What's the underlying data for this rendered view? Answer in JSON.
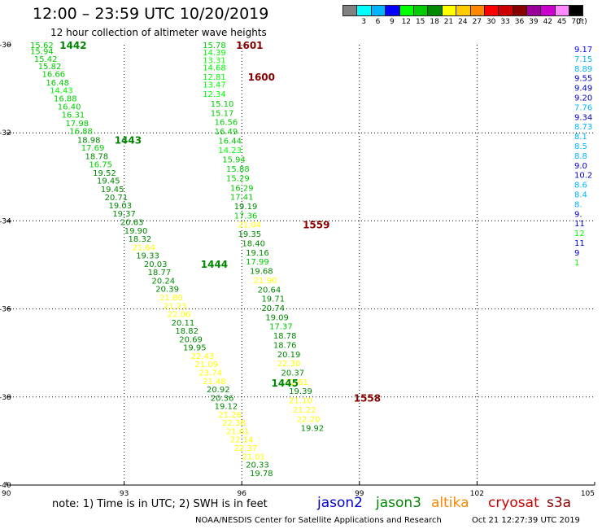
{
  "title": "12:00 – 23:59 UTC 10/20/2019",
  "subtitle": "12 hour collection of altimeter wave heights",
  "note": "note: 1) Time is in UTC; 2) SWH is in feet",
  "credit": "NOAA/NESDIS Center for Satellite Applications and Research",
  "timestamp": "Oct 21 12:27:39 UTC 2019",
  "legend": {
    "unit": "(ft)",
    "items": [
      {
        "label": "",
        "color": "#808080"
      },
      {
        "label": "3",
        "color": "#00ffff"
      },
      {
        "label": "6",
        "color": "#00b4ff"
      },
      {
        "label": "9",
        "color": "#0000ff"
      },
      {
        "label": "12",
        "color": "#00ff00"
      },
      {
        "label": "15",
        "color": "#00cc00"
      },
      {
        "label": "18",
        "color": "#008800"
      },
      {
        "label": "21",
        "color": "#ffff00"
      },
      {
        "label": "24",
        "color": "#ffcc00"
      },
      {
        "label": "27",
        "color": "#ff8800"
      },
      {
        "label": "30",
        "color": "#ff0000"
      },
      {
        "label": "33",
        "color": "#cc0000"
      },
      {
        "label": "36",
        "color": "#880000"
      },
      {
        "label": "39",
        "color": "#990099"
      },
      {
        "label": "42",
        "color": "#cc00cc"
      },
      {
        "label": "45",
        "color": "#ff88ff"
      },
      {
        "label": "70",
        "color": "#000000"
      }
    ]
  },
  "satellites": [
    {
      "name": "jason2",
      "color": "#0000cc"
    },
    {
      "name": "jason3",
      "color": "#008800"
    },
    {
      "name": "altika",
      "color": "#ff8800"
    },
    {
      "name": "cryosat",
      "color": "#cc0000"
    },
    {
      "name": "s3a",
      "color": "#880000"
    }
  ],
  "chart_data": {
    "type": "scatter",
    "xlabel": "",
    "ylabel": "",
    "xlim": [
      90,
      105
    ],
    "ylim": [
      -40,
      -30
    ],
    "x_ticks": [
      "90",
      "93",
      "96",
      "99",
      "102",
      "105"
    ],
    "x_tick_values": [
      90,
      93,
      96,
      99,
      102,
      105
    ],
    "y_ticks": [
      "-30",
      "-32",
      "-34",
      "-36",
      "-38",
      "-40"
    ],
    "y_tick_values": [
      -30,
      -32,
      -34,
      -36,
      -38,
      -40
    ],
    "grid": true,
    "series": [
      {
        "points": [
          [
            90.9,
            -30.0,
            "15.62",
            "#00cc00"
          ],
          [
            90.9,
            -30.14,
            "15.94",
            "#00cc00"
          ],
          [
            91.0,
            -30.31,
            "15.42",
            "#00cc00"
          ],
          [
            91.1,
            -30.48,
            "15.82",
            "#00cc00"
          ],
          [
            91.2,
            -30.66,
            "16.66",
            "#00cc00"
          ],
          [
            91.3,
            -30.85,
            "16.48",
            "#00cc00"
          ],
          [
            91.4,
            -31.03,
            "14.43",
            "#00ff00"
          ],
          [
            91.5,
            -31.21,
            "16.88",
            "#00cc00"
          ],
          [
            91.6,
            -31.4,
            "16.40",
            "#00cc00"
          ],
          [
            91.7,
            -31.58,
            "16.31",
            "#00cc00"
          ],
          [
            91.8,
            -31.77,
            "17.98",
            "#00cc00"
          ],
          [
            91.9,
            -31.95,
            "16.88",
            "#00cc00"
          ],
          [
            92.1,
            -32.15,
            "18.98",
            "#008800"
          ],
          [
            92.2,
            -32.33,
            "17.69",
            "#00cc00"
          ],
          [
            92.3,
            -32.52,
            "18.78",
            "#008800"
          ],
          [
            92.4,
            -32.71,
            "16.75",
            "#00cc00"
          ],
          [
            92.5,
            -32.9,
            "19.52",
            "#008800"
          ],
          [
            92.6,
            -33.08,
            "19.45",
            "#008800"
          ],
          [
            92.7,
            -33.27,
            "19.45",
            "#008800"
          ],
          [
            92.8,
            -33.46,
            "20.71",
            "#008800"
          ],
          [
            92.9,
            -33.64,
            "19.03",
            "#008800"
          ],
          [
            93.0,
            -33.83,
            "19.37",
            "#008800"
          ],
          [
            93.2,
            -34.02,
            "20.63",
            "#008800"
          ],
          [
            93.3,
            -34.21,
            "19.90",
            "#008800"
          ],
          [
            93.4,
            -34.4,
            "18.32",
            "#008800"
          ],
          [
            93.5,
            -34.59,
            "21.64",
            "#ffff00"
          ],
          [
            93.6,
            -34.78,
            "19.33",
            "#008800"
          ],
          [
            93.8,
            -34.97,
            "20.03",
            "#008800"
          ],
          [
            93.9,
            -35.16,
            "18.77",
            "#008800"
          ],
          [
            94.0,
            -35.35,
            "20.24",
            "#008800"
          ],
          [
            94.1,
            -35.54,
            "20.39",
            "#008800"
          ],
          [
            94.2,
            -35.73,
            "21.80",
            "#ffff00"
          ],
          [
            94.3,
            -35.92,
            "21.23",
            "#ffff00"
          ],
          [
            94.4,
            -36.11,
            "22.06",
            "#ffff00"
          ],
          [
            94.5,
            -36.3,
            "20.11",
            "#008800"
          ],
          [
            94.6,
            -36.49,
            "18.82",
            "#008800"
          ],
          [
            94.7,
            -36.68,
            "20.69",
            "#008800"
          ],
          [
            94.8,
            -36.87,
            "19.95",
            "#008800"
          ],
          [
            95.0,
            -37.06,
            "22.43",
            "#ffff00"
          ],
          [
            95.1,
            -37.25,
            "21.09",
            "#ffff00"
          ],
          [
            95.2,
            -37.44,
            "23.74",
            "#ffff00"
          ],
          [
            95.3,
            -37.63,
            "21.48",
            "#ffff00"
          ],
          [
            95.4,
            -37.82,
            "20.92",
            "#008800"
          ],
          [
            95.5,
            -38.01,
            "20.36",
            "#008800"
          ],
          [
            95.6,
            -38.2,
            "19.12",
            "#008800"
          ],
          [
            95.7,
            -38.39,
            "21.26",
            "#ffff00"
          ],
          [
            95.8,
            -38.58,
            "22.38",
            "#ffff00"
          ],
          [
            95.9,
            -38.77,
            "21.61",
            "#ffff00"
          ],
          [
            96.0,
            -38.96,
            "22.14",
            "#ffff00"
          ],
          [
            96.1,
            -39.15,
            "22.37",
            "#ffff00"
          ],
          [
            96.3,
            -39.34,
            "21.01",
            "#ffff00"
          ],
          [
            96.4,
            -39.53,
            "20.33",
            "#008800"
          ],
          [
            96.5,
            -39.72,
            "19.78",
            "#008800"
          ]
        ]
      },
      {
        "points": [
          [
            95.3,
            -30.0,
            "15.78",
            "#00cc00"
          ],
          [
            95.3,
            -30.17,
            "14.39",
            "#00ff00"
          ],
          [
            95.3,
            -30.34,
            "13.31",
            "#00ff00"
          ],
          [
            95.3,
            -30.51,
            "14.68",
            "#00ff00"
          ],
          [
            95.3,
            -30.72,
            "12.81",
            "#00ff00"
          ],
          [
            95.3,
            -30.9,
            "13.47",
            "#00ff00"
          ],
          [
            95.3,
            -31.11,
            "12.34",
            "#00ff00"
          ],
          [
            95.5,
            -31.33,
            "15.10",
            "#00cc00"
          ],
          [
            95.5,
            -31.54,
            "15.17",
            "#00cc00"
          ],
          [
            95.6,
            -31.75,
            "16.56",
            "#00cc00"
          ],
          [
            95.6,
            -31.96,
            "16.49",
            "#00cc00"
          ],
          [
            95.7,
            -32.17,
            "16.44",
            "#00cc00"
          ],
          [
            95.7,
            -32.38,
            "14.23",
            "#00ff00"
          ],
          [
            95.8,
            -32.6,
            "15.94",
            "#00cc00"
          ],
          [
            95.9,
            -32.81,
            "15.88",
            "#00cc00"
          ],
          [
            95.9,
            -33.02,
            "15.29",
            "#00cc00"
          ],
          [
            96.0,
            -33.24,
            "16.29",
            "#00cc00"
          ],
          [
            96.0,
            -33.45,
            "17.41",
            "#00cc00"
          ],
          [
            96.1,
            -33.66,
            "19.19",
            "#008800"
          ],
          [
            96.1,
            -33.87,
            "17.36",
            "#00cc00"
          ],
          [
            96.2,
            -34.08,
            "21.04",
            "#ffff00"
          ],
          [
            96.2,
            -34.29,
            "19.35",
            "#008800"
          ],
          [
            96.3,
            -34.5,
            "18.40",
            "#008800"
          ],
          [
            96.4,
            -34.71,
            "19.16",
            "#008800"
          ],
          [
            96.4,
            -34.92,
            "17.99",
            "#00cc00"
          ],
          [
            96.5,
            -35.13,
            "19.68",
            "#008800"
          ],
          [
            96.6,
            -35.34,
            "21.90",
            "#ffff00"
          ],
          [
            96.7,
            -35.55,
            "20.64",
            "#008800"
          ],
          [
            96.8,
            -35.76,
            "19.71",
            "#008800"
          ],
          [
            96.8,
            -35.97,
            "20.74",
            "#008800"
          ],
          [
            96.9,
            -36.18,
            "19.09",
            "#008800"
          ],
          [
            97.0,
            -36.39,
            "17.37",
            "#00cc00"
          ],
          [
            97.1,
            -36.6,
            "18.78",
            "#008800"
          ],
          [
            97.1,
            -36.81,
            "18.76",
            "#008800"
          ],
          [
            97.2,
            -37.02,
            "20.19",
            "#008800"
          ],
          [
            97.2,
            -37.23,
            "22.30",
            "#ffff00"
          ],
          [
            97.3,
            -37.44,
            "20.37",
            "#008800"
          ],
          [
            97.4,
            -37.65,
            "22.61",
            "#ffff00"
          ],
          [
            97.5,
            -37.86,
            "19.39",
            "#008800"
          ],
          [
            97.5,
            -38.07,
            "21.10",
            "#ffff00"
          ],
          [
            97.6,
            -38.28,
            "21.22",
            "#ffff00"
          ],
          [
            97.7,
            -38.49,
            "22.20",
            "#ffff00"
          ],
          [
            97.8,
            -38.7,
            "19.92",
            "#008800"
          ]
        ]
      }
    ],
    "right_column": [
      {
        "value": "9.17",
        "color": "#0000ff"
      },
      {
        "value": "7.15",
        "color": "#00b4ff"
      },
      {
        "value": "8.89",
        "color": "#00b4ff"
      },
      {
        "value": "9.55",
        "color": "#0000cc"
      },
      {
        "value": "9.49",
        "color": "#0000cc"
      },
      {
        "value": "9.20",
        "color": "#0000cc"
      },
      {
        "value": "7.76",
        "color": "#00b4ff"
      },
      {
        "value": "9.34",
        "color": "#0000cc"
      },
      {
        "value": "8.73",
        "color": "#00b4ff"
      },
      {
        "value": "8.1",
        "color": "#00b4ff"
      },
      {
        "value": "8.5",
        "color": "#00b4ff"
      },
      {
        "value": "8.8",
        "color": "#00b4ff"
      },
      {
        "value": "9.0",
        "color": "#0000cc"
      },
      {
        "value": "10.2",
        "color": "#0000cc"
      },
      {
        "value": "8.6",
        "color": "#00b4ff"
      },
      {
        "value": "8.4",
        "color": "#00b4ff"
      },
      {
        "value": "8.",
        "color": "#00b4ff"
      },
      {
        "value": "9.",
        "color": "#0000cc"
      },
      {
        "value": "11",
        "color": "#0000cc"
      },
      {
        "value": "12",
        "color": "#00ff00"
      },
      {
        "value": "11",
        "color": "#0000cc"
      },
      {
        "value": "9",
        "color": "#0000cc"
      },
      {
        "value": "1",
        "color": "#00ff00"
      }
    ],
    "annotations": [
      {
        "text": "1442",
        "x": 91.7,
        "y": -30.0,
        "color": "#008800"
      },
      {
        "text": "1601",
        "x": 96.2,
        "y": -30.0,
        "color": "#880000"
      },
      {
        "text": "1600",
        "x": 96.5,
        "y": -30.72,
        "color": "#880000"
      },
      {
        "text": "1443",
        "x": 93.1,
        "y": -32.15,
        "color": "#008800"
      },
      {
        "text": "1559",
        "x": 97.9,
        "y": -34.08,
        "color": "#880000"
      },
      {
        "text": "1444",
        "x": 95.3,
        "y": -34.97,
        "color": "#008800"
      },
      {
        "text": "1445",
        "x": 97.1,
        "y": -37.67,
        "color": "#008800"
      },
      {
        "text": "1558",
        "x": 99.2,
        "y": -38.01,
        "color": "#880000"
      }
    ]
  }
}
